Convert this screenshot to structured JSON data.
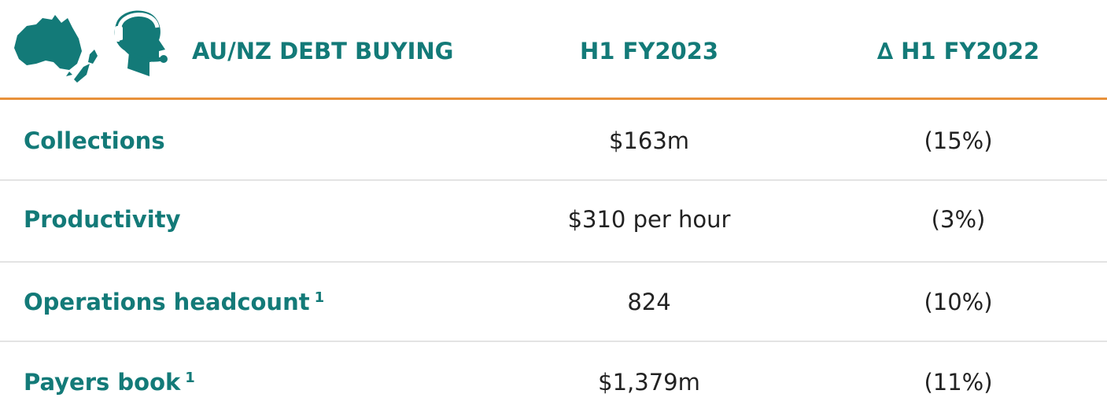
{
  "header": {
    "title": "AU/NZ DEBT BUYING",
    "columns": [
      "H1 FY2023",
      "∆ H1 FY2022"
    ]
  },
  "table": {
    "rows": [
      {
        "label": "Collections",
        "note": null,
        "values": [
          "$163m",
          "(15%)"
        ]
      },
      {
        "label": "Productivity",
        "note": null,
        "values": [
          "$310 per hour",
          "(3%)"
        ]
      },
      {
        "label": "Operations headcount",
        "note": "1",
        "values": [
          "824",
          "(10%)"
        ]
      },
      {
        "label": "Payers book",
        "note": "1",
        "values": [
          "$1,379m",
          "(11%)"
        ]
      }
    ]
  }
}
